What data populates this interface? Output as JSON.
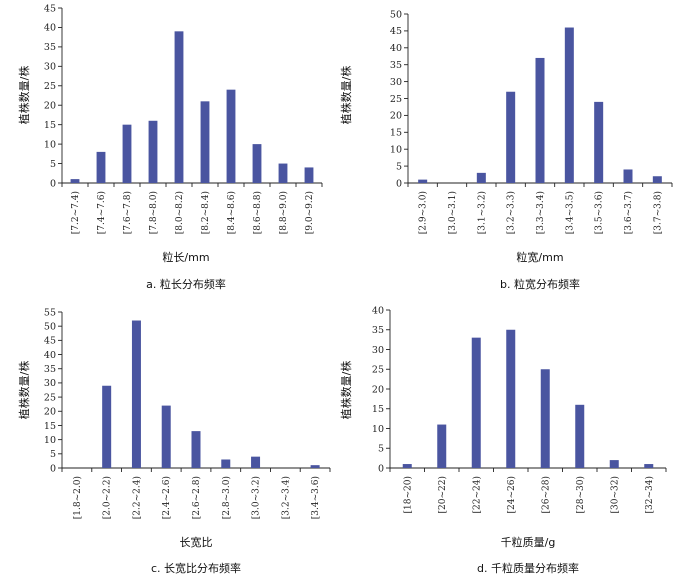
{
  "bar_color": "#4a55a0",
  "chart_data": [
    {
      "type": "bar",
      "caption": "a.  粒长分布频率",
      "xlabel": "粒长/mm",
      "ylabel": "植株数量/株",
      "ylim": [
        0,
        45
      ],
      "yticks": [
        0,
        5,
        10,
        15,
        20,
        25,
        30,
        35,
        40,
        45
      ],
      "categories": [
        "[7.2~7.4)",
        "[7.4~7.6)",
        "[7.6~7.8)",
        "[7.8~8.0)",
        "[8.0~8.2)",
        "[8.2~8.4)",
        "[8.4~8.6)",
        "[8.6~8.8)",
        "[8.8~9.0)",
        "[9.0~9.2)"
      ],
      "values": [
        1,
        8,
        15,
        16,
        39,
        21,
        24,
        10,
        5,
        4
      ]
    },
    {
      "type": "bar",
      "caption": "b.  粒宽分布频率",
      "xlabel": "粒宽/mm",
      "ylabel": "植株数量/株",
      "ylim": [
        0,
        50
      ],
      "yticks": [
        0,
        5,
        10,
        15,
        20,
        25,
        30,
        35,
        40,
        45,
        50
      ],
      "categories": [
        "[2.9~3.0)",
        "[3.0~3.1)",
        "[3.1~3.2)",
        "[3.2~3.3)",
        "[3.3~3.4)",
        "[3.4~3.5)",
        "[3.5~3.6)",
        "[3.6~3.7)",
        "[3.7~3.8)"
      ],
      "values": [
        1,
        0,
        3,
        27,
        37,
        46,
        24,
        4,
        2
      ]
    },
    {
      "type": "bar",
      "caption": "c.  长宽比分布频率",
      "xlabel": "长宽比",
      "ylabel": "植株数量/株",
      "ylim": [
        0,
        55
      ],
      "yticks": [
        0,
        5,
        10,
        15,
        20,
        25,
        30,
        35,
        40,
        45,
        50,
        55
      ],
      "categories": [
        "[1.8~2.0)",
        "[2.0~2.2)",
        "[2.2~2.4)",
        "[2.4~2.6)",
        "[2.6~2.8)",
        "[2.8~3.0)",
        "[3.0~3.2)",
        "[3.2~3.4)",
        "[3.4~3.6)"
      ],
      "values": [
        0,
        29,
        52,
        22,
        13,
        3,
        4,
        0,
        1
      ]
    },
    {
      "type": "bar",
      "caption": "d.  千粒质量分布频率",
      "xlabel": "千粒质量/g",
      "ylabel": "植株数量/株",
      "ylim": [
        0,
        40
      ],
      "yticks": [
        0,
        5,
        10,
        15,
        20,
        25,
        30,
        35,
        40
      ],
      "categories": [
        "[18~20)",
        "[20~22)",
        "[22~24)",
        "[24~26)",
        "[26~28)",
        "[28~30)",
        "[30~32)",
        "[32~34)"
      ],
      "values": [
        1,
        11,
        33,
        35,
        25,
        16,
        2,
        1
      ]
    }
  ]
}
